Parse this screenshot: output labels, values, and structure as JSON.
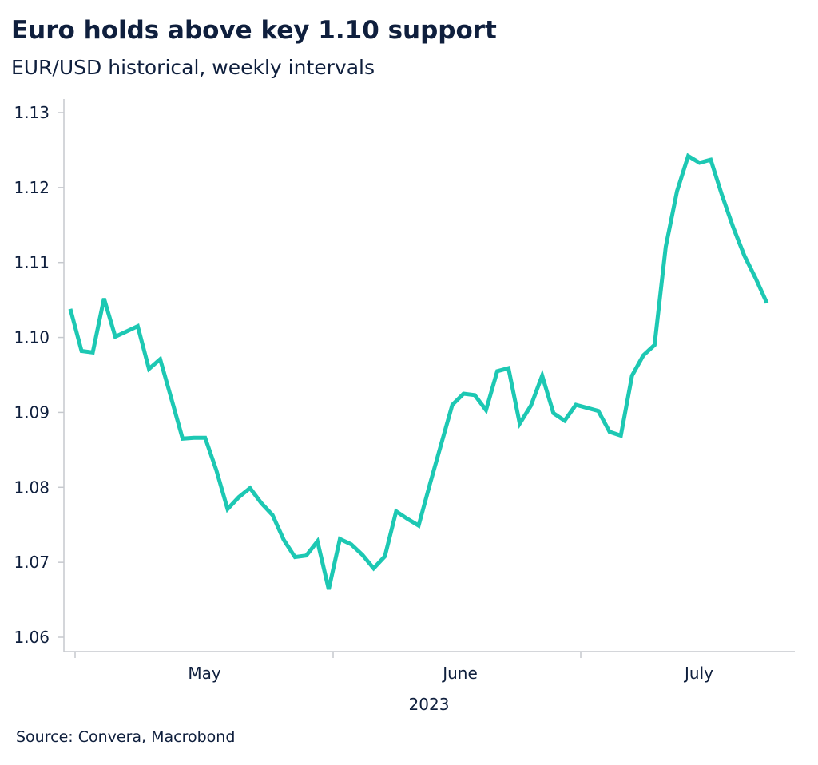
{
  "header": {
    "title": "Euro holds above key 1.10 support",
    "subtitle": "EUR/USD historical, weekly intervals"
  },
  "footer": {
    "source": "Source: Convera, Macrobond"
  },
  "colors": {
    "line": "#1dc8b3",
    "axis": "#c6c9ce",
    "text": "#0f1f3d"
  },
  "chart_data": {
    "type": "line",
    "title": "Euro holds above key 1.10 support",
    "subtitle": "EUR/USD historical, weekly intervals",
    "xlabel": "2023",
    "ylabel": "",
    "ylim": [
      1.06,
      1.13
    ],
    "yticks": [
      "1.06",
      "1.07",
      "1.08",
      "1.09",
      "1.10",
      "1.11",
      "1.12",
      "1.13"
    ],
    "xticks": [
      "May",
      "June",
      "July"
    ],
    "year_label": "2023",
    "grid": false,
    "series": [
      {
        "values": [
          1.1038,
          1.0982,
          1.098,
          1.1052,
          1.1001,
          1.1008,
          1.1015,
          1.0958,
          1.0971,
          1.0918,
          1.0865,
          1.0866,
          1.0866,
          1.0823,
          1.0771,
          1.0787,
          1.0799,
          1.0779,
          1.0763,
          1.073,
          1.0707,
          1.0709,
          1.0728,
          1.0664,
          1.0731,
          1.0724,
          1.071,
          1.0692,
          1.0708,
          1.0768,
          1.0758,
          1.0749,
          1.0804,
          1.0857,
          1.091,
          1.0925,
          1.0923,
          1.0903,
          1.0955,
          1.0959,
          1.0885,
          1.0909,
          1.0949,
          1.0899,
          1.0889,
          1.091,
          1.0906,
          1.0902,
          1.0874,
          1.0869,
          1.0949,
          1.0976,
          1.099,
          1.1121,
          1.1195,
          1.1242,
          1.1233,
          1.1237,
          1.119,
          1.1147,
          1.1109,
          1.1079,
          1.1046
        ]
      }
    ]
  }
}
